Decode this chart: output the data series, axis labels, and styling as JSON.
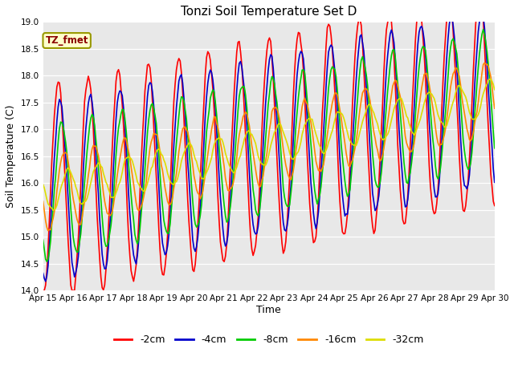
{
  "title": "Tonzi Soil Temperature Set D",
  "xlabel": "Time",
  "ylabel": "Soil Temperature (C)",
  "ylim": [
    14.0,
    19.0
  ],
  "yticks": [
    14.0,
    14.5,
    15.0,
    15.5,
    16.0,
    16.5,
    17.0,
    17.5,
    18.0,
    18.5,
    19.0
  ],
  "legend_label": "TZ_fmet",
  "series_labels": [
    "-2cm",
    "-4cm",
    "-8cm",
    "-16cm",
    "-32cm"
  ],
  "series_colors": [
    "#ff0000",
    "#0000cc",
    "#00cc00",
    "#ff8800",
    "#dddd00"
  ],
  "line_width": 1.2,
  "xtick_labels": [
    "Apr 15",
    "Apr 16",
    "Apr 17",
    "Apr 18",
    "Apr 19",
    "Apr 20",
    "Apr 21",
    "Apr 22",
    "Apr 23",
    "Apr 24",
    "Apr 25",
    "Apr 26",
    "Apr 27",
    "Apr 28",
    "Apr 29",
    "Apr 30"
  ],
  "fig_facecolor": "#ffffff",
  "ax_facecolor": "#e8e8e8"
}
